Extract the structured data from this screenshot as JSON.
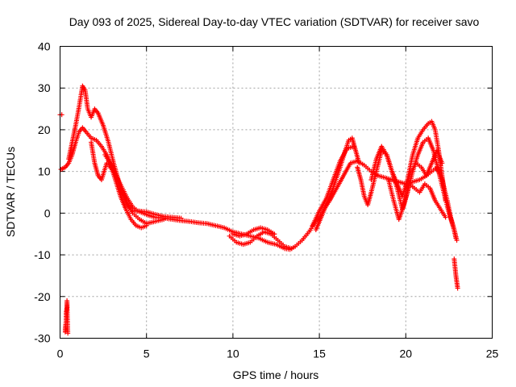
{
  "chart_data": {
    "type": "scatter",
    "title": "Day 093 of 2025, Sidereal Day-to-day VTEC variation (SDTVAR) for receiver savo",
    "xlabel": "GPS time / hours",
    "ylabel": "SDTVAR / TECUs",
    "xlim": [
      0,
      25
    ],
    "ylim": [
      -30,
      40
    ],
    "xticks": [
      0,
      5,
      10,
      15,
      20,
      25
    ],
    "yticks": [
      -30,
      -20,
      -10,
      0,
      10,
      20,
      30,
      40
    ],
    "grid": true,
    "marker": "+",
    "series": [
      {
        "name": "SDTVAR",
        "color": "#ff0000",
        "tracks": [
          {
            "x": [
              0.0,
              0.1
            ],
            "y": [
              23.6,
              23.6
            ]
          },
          {
            "x": [
              0.3,
              0.3,
              0.35,
              0.35,
              0.4,
              0.4,
              0.45
            ],
            "y": [
              -28.5,
              -27.8,
              -26,
              -24,
              -22.5,
              -21,
              -28.8
            ]
          },
          {
            "x": [
              0.05,
              0.3,
              0.5,
              0.7,
              0.9,
              1.1,
              1.3,
              1.5,
              1.8,
              2.1,
              2.4,
              2.7,
              3.0,
              3.3,
              3.6,
              3.9,
              4.2,
              4.5,
              4.8,
              5.1,
              5.5,
              6.0,
              6.5,
              7.0,
              7.5,
              8.0,
              8.5,
              9.0,
              9.5,
              10.0,
              10.5,
              11.0,
              11.5,
              12.0,
              12.5,
              13.0,
              13.3,
              13.6,
              14.0,
              14.4,
              14.8,
              15.2,
              15.6,
              16.0,
              16.4,
              16.8,
              17.2,
              17.6,
              18.0,
              18.4,
              18.8,
              19.2,
              19.6,
              20.0,
              20.4,
              20.8,
              21.2,
              21.5,
              21.8,
              22.1,
              22.4,
              22.6,
              22.8,
              22.9
            ],
            "y": [
              10.5,
              11.0,
              12.0,
              14.0,
              17.0,
              19.5,
              20.5,
              19.5,
              18.0,
              17.5,
              16.0,
              14.0,
              11.0,
              8.5,
              6.0,
              3.5,
              1.5,
              0.5,
              0.0,
              -0.5,
              -1.0,
              -1.2,
              -1.5,
              -1.8,
              -2.0,
              -2.3,
              -2.5,
              -3.0,
              -3.5,
              -4.5,
              -5.0,
              -5.5,
              -6.0,
              -7.0,
              -7.5,
              -8.5,
              -8.7,
              -8.0,
              -6.5,
              -4.5,
              -2.0,
              0.5,
              3.0,
              6.0,
              9.0,
              12.0,
              12.5,
              11.5,
              10.0,
              9.0,
              8.5,
              8.0,
              7.5,
              7.0,
              7.5,
              8.0,
              9.0,
              10.0,
              11.0,
              8.0,
              3.0,
              -1.0,
              -4.0,
              -6.0
            ]
          },
          {
            "x": [
              0.5,
              0.7,
              0.9,
              1.1,
              1.3,
              1.45,
              1.6,
              1.8,
              2.0,
              2.2,
              2.5,
              2.8,
              3.1,
              3.4,
              3.7,
              4.0,
              4.3,
              4.6,
              5.0,
              5.5,
              6.0,
              6.5,
              7.0
            ],
            "y": [
              13.0,
              17.0,
              21.0,
              25.5,
              30.5,
              29.5,
              25.0,
              23.0,
              25.0,
              24.0,
              21.0,
              17.0,
              12.0,
              7.5,
              4.0,
              1.5,
              0.5,
              0.5,
              0.3,
              -0.3,
              -0.8,
              -1.0,
              -1.2
            ]
          },
          {
            "x": [
              1.8,
              2.0,
              2.2,
              2.4,
              2.7,
              3.0,
              3.3,
              3.6,
              3.9,
              4.2,
              4.6,
              5.0,
              5.5,
              6.0
            ],
            "y": [
              17.0,
              12.0,
              9.0,
              8.0,
              12.0,
              10.5,
              8.0,
              5.0,
              2.0,
              0.0,
              -1.5,
              -2.5,
              -2.0,
              -1.5
            ]
          },
          {
            "x": [
              2.6,
              2.9,
              3.2,
              3.5,
              3.8,
              4.1,
              4.4,
              4.7,
              5.0
            ],
            "y": [
              14.0,
              12.0,
              8.0,
              4.0,
              1.0,
              -1.5,
              -3.0,
              -3.5,
              -3.0
            ]
          },
          {
            "x": [
              9.8,
              10.2,
              10.6,
              11.0,
              11.4,
              11.8,
              12.2,
              12.6,
              13.0,
              13.4
            ],
            "y": [
              -5.5,
              -7.0,
              -7.5,
              -7.0,
              -5.5,
              -4.5,
              -5.0,
              -6.5,
              -8.0,
              -8.5
            ]
          },
          {
            "x": [
              10.0,
              10.4,
              10.8,
              11.2,
              11.6,
              12.0,
              12.4
            ],
            "y": [
              -5.0,
              -5.5,
              -5.0,
              -4.0,
              -3.5,
              -4.0,
              -5.0
            ]
          },
          {
            "x": [
              14.8,
              15.1,
              15.4,
              15.8,
              16.2,
              16.5,
              16.7,
              16.9,
              17.1,
              17.3
            ],
            "y": [
              -4.0,
              -1.0,
              2.0,
              6.0,
              11.0,
              15.0,
              17.5,
              18.0,
              15.0,
              12.0
            ]
          },
          {
            "x": [
              14.6,
              15.0,
              15.4,
              15.8,
              16.2,
              16.6,
              17.0
            ],
            "y": [
              -3.0,
              0.5,
              3.5,
              8.0,
              12.5,
              15.5,
              16.0
            ]
          },
          {
            "x": [
              17.2,
              17.4,
              17.6,
              17.8,
              18.0,
              18.3,
              18.6,
              18.9,
              19.2,
              19.5,
              19.8,
              20.1,
              20.4,
              20.7,
              21.0,
              21.3,
              21.6,
              21.9,
              22.2,
              22.5,
              22.8,
              22.95
            ],
            "y": [
              11.0,
              8.0,
              4.0,
              2.0,
              5.0,
              10.0,
              15.0,
              14.0,
              10.0,
              6.0,
              1.0,
              5.0,
              10.0,
              14.0,
              17.0,
              18.0,
              15.0,
              10.0,
              5.0,
              0.0,
              -4.0,
              -6.5
            ]
          },
          {
            "x": [
              18.0,
              18.3,
              18.6,
              18.9,
              19.2,
              19.5,
              19.8,
              20.1,
              20.4,
              20.7,
              21.0,
              21.3,
              21.5,
              21.7,
              21.9,
              22.1,
              22.3
            ],
            "y": [
              8.0,
              13.0,
              16.0,
              14.0,
              10.0,
              7.0,
              4.0,
              8.0,
              14.0,
              18.0,
              20.0,
              21.5,
              22.0,
              20.0,
              15.0,
              9.0,
              3.0
            ]
          },
          {
            "x": [
              19.0,
              19.3,
              19.6,
              19.9,
              20.2,
              20.5,
              20.8,
              21.1,
              21.4,
              21.7,
              22.0,
              22.3
            ],
            "y": [
              8.0,
              3.0,
              -1.5,
              2.0,
              7.0,
              6.0,
              5.0,
              7.0,
              6.0,
              3.0,
              1.0,
              -1.0
            ]
          },
          {
            "x": [
              20.0,
              20.3,
              20.6,
              20.9,
              21.2,
              21.5,
              21.8,
              22.1
            ],
            "y": [
              6.0,
              10.0,
              12.0,
              11.0,
              9.0,
              12.0,
              15.0,
              12.0
            ]
          },
          {
            "x": [
              22.8,
              22.85,
              22.9,
              22.95,
              23.0
            ],
            "y": [
              -11.0,
              -13.0,
              -15.0,
              -16.5,
              -18.0
            ]
          }
        ]
      }
    ]
  }
}
